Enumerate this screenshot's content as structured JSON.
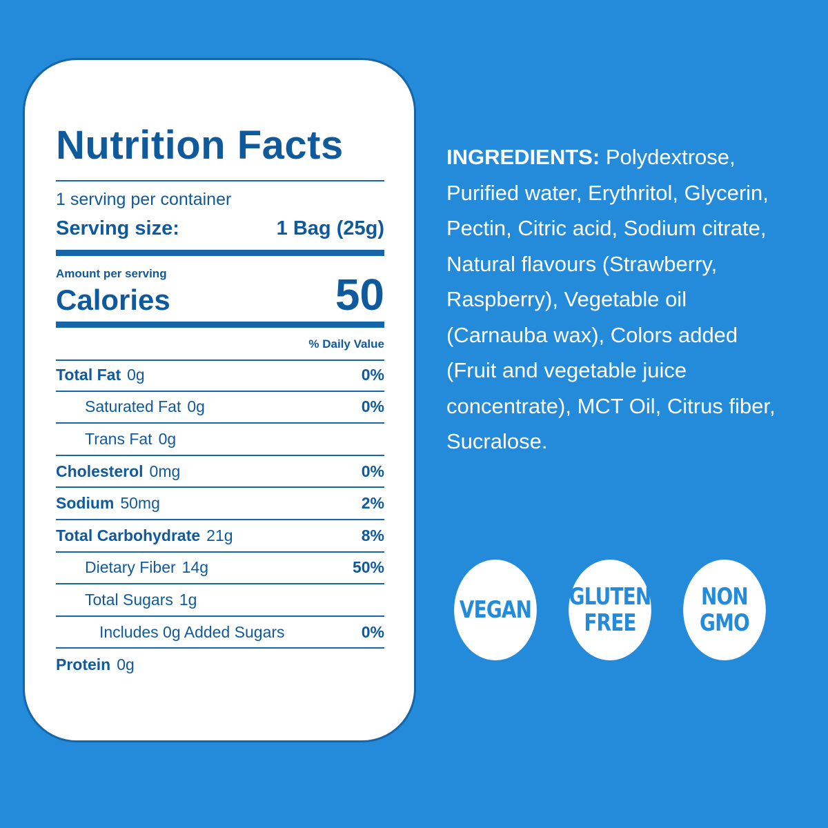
{
  "nutrition": {
    "title": "Nutrition Facts",
    "servings_per_container": "1 serving per container",
    "serving_size_label": "Serving size:",
    "serving_size_value": "1 Bag (25g)",
    "amount_per_serving": "Amount per serving",
    "calories_label": "Calories",
    "calories_value": "50",
    "daily_value_header": "% Daily Value",
    "rows": [
      {
        "name": "Total Fat",
        "amount": "0g",
        "dv": "0%"
      },
      {
        "name": "Saturated Fat",
        "amount": "0g",
        "dv": "0%"
      },
      {
        "name": "Trans Fat",
        "amount": "0g",
        "dv": ""
      },
      {
        "name": "Cholesterol",
        "amount": "0mg",
        "dv": "0%"
      },
      {
        "name": "Sodium",
        "amount": "50mg",
        "dv": "2%"
      },
      {
        "name": "Total Carbohydrate",
        "amount": "21g",
        "dv": "8%"
      },
      {
        "name": "Dietary Fiber",
        "amount": "14g",
        "dv": "50%"
      },
      {
        "name": "Total Sugars",
        "amount": "1g",
        "dv": ""
      },
      {
        "name": "Includes 0g Added Sugars",
        "amount": "",
        "dv": "0%"
      },
      {
        "name": "Protein",
        "amount": "0g",
        "dv": ""
      }
    ]
  },
  "ingredients": {
    "label": "INGREDIENTS:",
    "text": "Polydextrose, Purified water, Erythritol, Glycerin, Pectin, Citric acid, Sodium citrate, Natural flavours (Strawberry, Raspberry), Vegetable oil (Carnauba wax), Colors added (Fruit and vegetable juice concentrate), MCT Oil, Citrus fiber, Sucralose."
  },
  "badges": [
    {
      "line1": "VEGAN",
      "line2": ""
    },
    {
      "line1": "GLUTEN",
      "line2": "FREE"
    },
    {
      "line1": "NON",
      "line2": "GMO"
    }
  ],
  "colors": {
    "background": "#238bd9",
    "card": "#ffffff",
    "text_dark_blue": "#0e5a9c",
    "rule": "#1565a8"
  }
}
